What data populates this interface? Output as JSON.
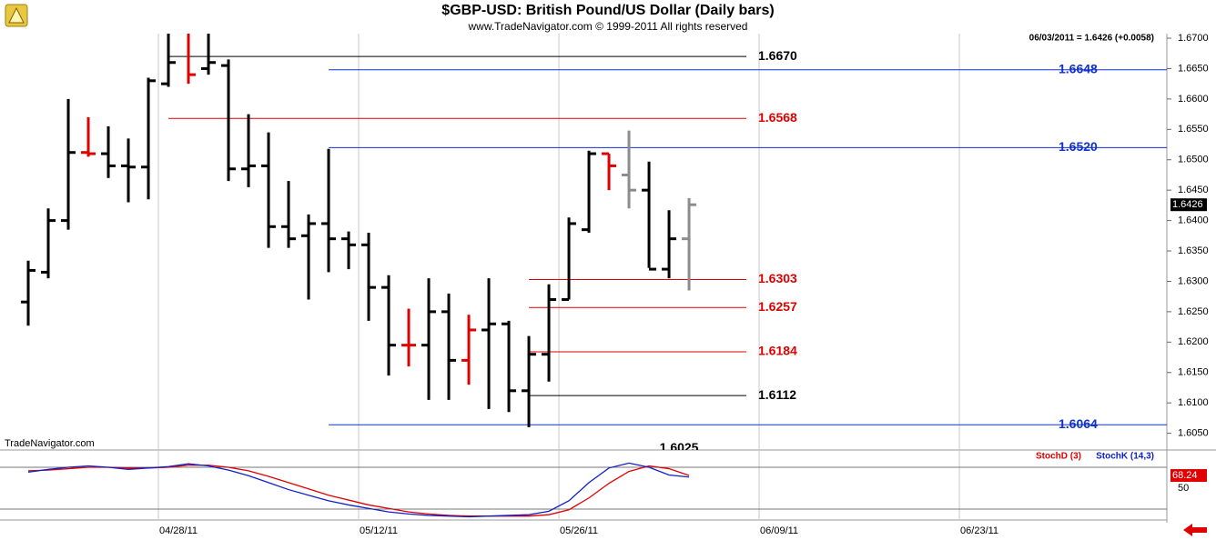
{
  "chart_data": {
    "type": "ohlc",
    "title": "$GBP-USD:  British Pound/US Dollar  (Daily bars)",
    "subtitle": "www.TradeNavigator.com © 1999-2011 All rights reserved",
    "info": "06/03/2011 = 1.6426 (+0.0058)",
    "watermark": "TradeNavigator.com",
    "x": [
      0,
      1,
      2,
      3,
      4,
      5,
      6,
      7,
      8,
      9,
      10,
      11,
      12,
      13,
      14,
      15,
      16,
      17,
      18,
      19,
      20,
      21,
      22,
      23,
      24,
      25,
      26,
      27,
      28,
      29,
      30,
      31,
      32,
      33
    ],
    "open": [
      1.6266,
      1.6315,
      1.64,
      1.6512,
      1.651,
      1.649,
      1.6488,
      1.6625,
      1.671,
      1.665,
      1.6655,
      1.6485,
      1.649,
      1.639,
      1.6375,
      1.6395,
      1.637,
      1.636,
      1.629,
      1.6195,
      1.6195,
      1.625,
      1.617,
      1.622,
      1.623,
      1.612,
      1.618,
      1.627,
      1.6385,
      1.651,
      1.6475,
      1.645,
      1.632,
      1.637
    ],
    "high": [
      1.6334,
      1.642,
      1.66,
      1.657,
      1.6555,
      1.6535,
      1.6635,
      1.671,
      1.671,
      1.671,
      1.6665,
      1.6575,
      1.6545,
      1.6465,
      1.641,
      1.6518,
      1.6382,
      1.638,
      1.631,
      1.6255,
      1.6305,
      1.628,
      1.6245,
      1.6305,
      1.6235,
      1.621,
      1.6295,
      1.6405,
      1.6515,
      1.651,
      1.6548,
      1.6497,
      1.6417,
      1.6437
    ],
    "low": [
      1.6227,
      1.6305,
      1.6385,
      1.6505,
      1.647,
      1.643,
      1.6435,
      1.662,
      1.6625,
      1.664,
      1.6465,
      1.6455,
      1.6355,
      1.6355,
      1.627,
      1.6315,
      1.632,
      1.6235,
      1.6145,
      1.616,
      1.6105,
      1.6105,
      1.613,
      1.609,
      1.6085,
      1.606,
      1.6135,
      1.627,
      1.638,
      1.645,
      1.642,
      1.6322,
      1.6305,
      1.6285
    ],
    "close": [
      1.6318,
      1.64,
      1.6512,
      1.651,
      1.649,
      1.6488,
      1.663,
      1.666,
      1.664,
      1.666,
      1.6485,
      1.649,
      1.639,
      1.637,
      1.6395,
      1.637,
      1.636,
      1.629,
      1.6195,
      1.6195,
      1.625,
      1.617,
      1.622,
      1.623,
      1.612,
      1.618,
      1.627,
      1.6395,
      1.651,
      1.649,
      1.645,
      1.632,
      1.637,
      1.6426
    ],
    "colors": [
      "#000",
      "#000",
      "#000",
      "#e00000",
      "#000",
      "#000",
      "#000",
      "#000",
      "#e00000",
      "#000",
      "#000",
      "#000",
      "#000",
      "#000",
      "#000",
      "#000",
      "#000",
      "#000",
      "#000",
      "#e00000",
      "#000",
      "#000",
      "#e00000",
      "#000",
      "#000",
      "#000",
      "#000",
      "#000",
      "#000",
      "#e00000",
      "#8c8c8c",
      "#000",
      "#000",
      "#8c8c8c"
    ],
    "xlim": [
      -1.41,
      56.86
    ],
    "xticks": [
      {
        "value": 6.5,
        "label": "04/28/11"
      },
      {
        "value": 16.5,
        "label": "05/12/11"
      },
      {
        "value": 26.5,
        "label": "05/26/11"
      },
      {
        "value": 36.5,
        "label": "06/09/11"
      },
      {
        "value": 46.5,
        "label": "06/23/11"
      }
    ],
    "ylim": [
      1.60225,
      1.67075
    ],
    "yticks": [
      {
        "value": 1.605,
        "label": "1.6050"
      },
      {
        "value": 1.61,
        "label": "1.6100"
      },
      {
        "value": 1.615,
        "label": "1.6150"
      },
      {
        "value": 1.62,
        "label": "1.6200"
      },
      {
        "value": 1.625,
        "label": "1.6250"
      },
      {
        "value": 1.63,
        "label": "1.6300"
      },
      {
        "value": 1.635,
        "label": "1.6350"
      },
      {
        "value": 1.64,
        "label": "1.6400"
      },
      {
        "value": 1.645,
        "label": "1.6450"
      },
      {
        "value": 1.65,
        "label": "1.6500"
      },
      {
        "value": 1.655,
        "label": "1.6550"
      },
      {
        "value": 1.66,
        "label": "1.6600"
      },
      {
        "value": 1.665,
        "label": "1.6650"
      },
      {
        "value": 1.67,
        "label": "1.6700"
      }
    ],
    "last": {
      "value": 1.6426,
      "label": "1.6426"
    },
    "levels": [
      {
        "value": 1.667,
        "label": "1.6670",
        "color": "#000000",
        "start": 7,
        "extend": false,
        "line": true
      },
      {
        "value": 1.6648,
        "label": "1.6648",
        "color": "#1030d0",
        "start": 15,
        "extend": true,
        "line": true
      },
      {
        "value": 1.6568,
        "label": "1.6568",
        "color": "#e00000",
        "start": 7,
        "extend": false,
        "line": true
      },
      {
        "value": 1.652,
        "label": "1.6520",
        "color": "#1030d0",
        "start": 15,
        "extend": true,
        "line": true
      },
      {
        "value": 1.6303,
        "label": "1.6303",
        "color": "#e00000",
        "start": 25,
        "extend": false,
        "line": true
      },
      {
        "value": 1.6257,
        "label": "1.6257",
        "color": "#e00000",
        "start": 25,
        "extend": false,
        "line": true
      },
      {
        "value": 1.6184,
        "label": "1.6184",
        "color": "#e00000",
        "start": 25,
        "extend": false,
        "line": true
      },
      {
        "value": 1.6112,
        "label": "1.6112",
        "color": "#000000",
        "start": 25,
        "extend": false,
        "line": true
      },
      {
        "value": 1.6064,
        "label": "1.6064",
        "color": "#1030d0",
        "start": 15,
        "extend": true,
        "line": true
      },
      {
        "value": 1.6025,
        "label": "1.6025",
        "color": "#000000",
        "start": 32.5,
        "extend": false,
        "line": false
      }
    ],
    "stochastic": {
      "ylim": [
        4.4,
        102.2
      ],
      "y2ticks": [
        50
      ],
      "bands": [
        20,
        80
      ],
      "last": {
        "value": 68.24,
        "label": "68.24"
      },
      "series": [
        {
          "name": "StochD (3)",
          "color": "#e00000",
          "values": [
            75,
            76,
            78,
            80,
            80,
            79,
            79,
            80,
            83,
            83,
            80,
            75,
            67,
            58,
            49,
            40,
            33,
            26,
            21,
            16,
            13,
            11,
            10,
            10,
            10,
            10,
            12,
            19,
            36,
            57,
            74,
            82,
            78,
            68.24
          ]
        },
        {
          "name": "StochK (14,3)",
          "color": "#1020c8",
          "values": [
            73,
            77,
            80,
            82,
            80,
            77,
            79,
            81,
            85,
            82,
            76,
            68,
            58,
            48,
            40,
            32,
            26,
            21,
            16,
            13,
            11,
            10,
            9,
            10,
            11,
            12,
            17,
            32,
            58,
            79,
            86,
            80,
            69,
            66
          ]
        }
      ]
    }
  }
}
